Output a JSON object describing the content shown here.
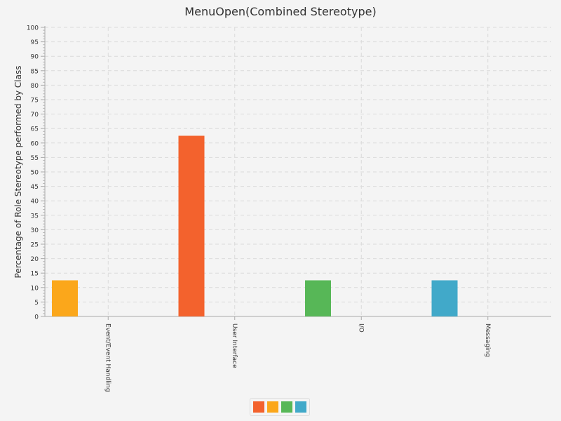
{
  "chart_data": {
    "type": "bar",
    "title": "MenuOpen(Combined Stereotype)",
    "xlabel": "",
    "ylabel": "Percentage of Role Stereotype performed by Class",
    "ylim": [
      0,
      100
    ],
    "ytick_step": 5,
    "grid": true,
    "categories": [
      "Event/Event Handling",
      "User Interface",
      "I/O",
      "Messaging"
    ],
    "series": [
      {
        "color": "#f3622d",
        "values": [
          0,
          62.5,
          0,
          0
        ]
      },
      {
        "color": "#fba71b",
        "values": [
          12.5,
          0,
          0,
          0
        ]
      },
      {
        "color": "#57b757",
        "values": [
          0,
          0,
          12.5,
          0
        ]
      },
      {
        "color": "#41a9c9",
        "values": [
          0,
          0,
          0,
          12.5
        ]
      }
    ],
    "legend": {
      "placement": "bottom-center",
      "labels": [
        "",
        "",
        "",
        ""
      ]
    }
  }
}
